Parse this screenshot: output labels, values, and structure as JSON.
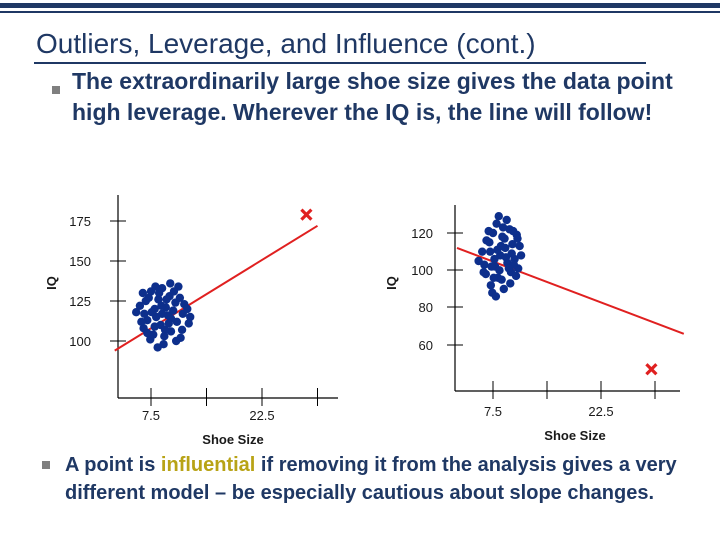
{
  "slide": {
    "title": "Outliers, Leverage, and Influence (cont.)",
    "bullet1": "The extraordinarily large shoe size gives the data point high leverage. Wherever the IQ is, the line will follow!",
    "bullet2_pre": "A point is ",
    "bullet2_highlight": "influential",
    "bullet2_post": " if removing it from the analysis gives a very different model – be especially cautious about slope changes."
  },
  "colors": {
    "title": "#1f3864",
    "highlight": "#b8a316",
    "points": "#0d2f8c",
    "outlier": "#e02020",
    "line": "#e02020"
  },
  "chart_data": [
    {
      "type": "scatter",
      "title": "",
      "xlabel": "Shoe Size",
      "ylabel": "IQ",
      "xticks": [
        7.5,
        22.5
      ],
      "yticks": [
        100,
        125,
        150,
        175
      ],
      "xlim": [
        0,
        30
      ],
      "ylim": [
        90,
        190
      ],
      "grid": false,
      "series": [
        {
          "marker": "dot",
          "points": [
            [
              5.5,
              118
            ],
            [
              6.0,
              122
            ],
            [
              6.5,
              108
            ],
            [
              7.0,
              113
            ],
            [
              7.2,
              127
            ],
            [
              7.5,
              131
            ],
            [
              7.8,
              104
            ],
            [
              8.0,
              120
            ],
            [
              8.2,
              115
            ],
            [
              8.5,
              126
            ],
            [
              8.8,
              110
            ],
            [
              9.0,
              133
            ],
            [
              9.2,
              98
            ],
            [
              9.5,
              121
            ],
            [
              9.8,
              116
            ],
            [
              10.0,
              128
            ],
            [
              10.2,
              106
            ],
            [
              10.5,
              119
            ],
            [
              10.8,
              124
            ],
            [
              11.0,
              112
            ],
            [
              11.2,
              134
            ],
            [
              11.5,
              102
            ],
            [
              11.8,
              117
            ],
            [
              12.0,
              123
            ],
            [
              6.2,
              112
            ],
            [
              6.8,
              125
            ],
            [
              7.4,
              101
            ],
            [
              8.0,
              109
            ],
            [
              8.6,
              130
            ],
            [
              9.4,
              107
            ],
            [
              10.2,
              114
            ],
            [
              10.9,
              100
            ],
            [
              6.4,
              130
            ],
            [
              8.4,
              96
            ],
            [
              9.6,
              126
            ],
            [
              11.4,
              127
            ],
            [
              12.4,
              120
            ],
            [
              7.6,
              118
            ],
            [
              8.9,
              122
            ],
            [
              9.9,
              111
            ],
            [
              10.6,
              131
            ],
            [
              12.6,
              111
            ],
            [
              11.7,
              107
            ],
            [
              9.3,
              103
            ],
            [
              7.0,
              105
            ],
            [
              10.1,
              136
            ],
            [
              8.1,
              134
            ],
            [
              6.6,
              117
            ],
            [
              9.0,
              117
            ],
            [
              12.8,
              115
            ]
          ]
        },
        {
          "marker": "x",
          "points": [
            [
              28.5,
              179
            ]
          ]
        }
      ],
      "fit_line": [
        [
          2.6,
          94
        ],
        [
          30,
          172
        ]
      ]
    },
    {
      "type": "scatter",
      "title": "",
      "xlabel": "Shoe Size",
      "ylabel": "IQ",
      "xticks": [
        7.5,
        22.5
      ],
      "yticks": [
        60,
        80,
        100,
        120
      ],
      "xlim": [
        0,
        30
      ],
      "ylim": [
        45,
        135
      ],
      "grid": false,
      "series": [
        {
          "marker": "dot",
          "points": [
            [
              5.5,
              105
            ],
            [
              6.0,
              110
            ],
            [
              6.5,
              98
            ],
            [
              7.0,
              115
            ],
            [
              7.2,
              92
            ],
            [
              7.5,
              120
            ],
            [
              7.8,
              102
            ],
            [
              8.0,
              125
            ],
            [
              8.2,
              96
            ],
            [
              8.5,
              108
            ],
            [
              8.8,
              118
            ],
            [
              9.0,
              90
            ],
            [
              9.2,
              112
            ],
            [
              9.5,
              104
            ],
            [
              9.8,
              122
            ],
            [
              10.0,
              99
            ],
            [
              10.2,
              114
            ],
            [
              10.5,
              106
            ],
            [
              10.8,
              119
            ],
            [
              11.0,
              101
            ],
            [
              6.3,
              103
            ],
            [
              6.9,
              121
            ],
            [
              7.4,
              88
            ],
            [
              8.1,
              111
            ],
            [
              8.7,
              95
            ],
            [
              9.4,
              127
            ],
            [
              10.1,
              109
            ],
            [
              10.7,
              97
            ],
            [
              11.2,
              113
            ],
            [
              7.7,
              106
            ],
            [
              8.4,
              100
            ],
            [
              9.1,
              117
            ],
            [
              9.9,
              93
            ],
            [
              6.6,
              116
            ],
            [
              7.9,
              86
            ],
            [
              8.9,
              123
            ],
            [
              10.4,
              103
            ],
            [
              11.4,
              108
            ],
            [
              7.1,
              110
            ],
            [
              9.7,
              101
            ],
            [
              8.3,
              129
            ],
            [
              6.2,
              99
            ],
            [
              10.9,
              117
            ],
            [
              9.3,
              107
            ],
            [
              7.6,
              96
            ],
            [
              8.6,
              113
            ],
            [
              10.3,
              121
            ],
            [
              7.3,
              102
            ]
          ]
        },
        {
          "marker": "x",
          "points": [
            [
              29.5,
              47
            ]
          ]
        }
      ],
      "fit_line": [
        [
          2.5,
          112
        ],
        [
          34,
          66
        ]
      ]
    }
  ]
}
